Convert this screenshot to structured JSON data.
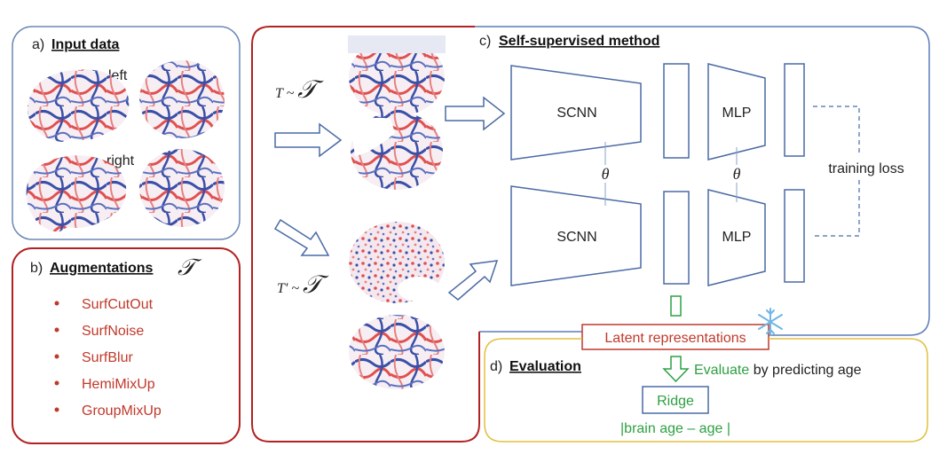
{
  "panel_a": {
    "letter": "a)",
    "title": "Input data",
    "left_label": "left",
    "right_label": "right"
  },
  "panel_b": {
    "letter": "b)",
    "title": "Augmentations",
    "symbol": "𝒯",
    "items": [
      "SurfCutOut",
      "SurfNoise",
      "SurfBlur",
      "HemiMixUp",
      "GroupMixUp"
    ]
  },
  "panel_c": {
    "letter": "c)",
    "title": "Self-supervised method",
    "t1_label": "T ~ ",
    "t2_label": "T' ~ ",
    "t_symbol": "𝒯",
    "scnn_label": "SCNN",
    "mlp_label": "MLP",
    "theta": "θ",
    "loss_label": "training loss"
  },
  "latent": {
    "label": "Latent representations",
    "frozen_icon": "snowflake-icon"
  },
  "panel_d": {
    "letter": "d)",
    "title": "Evaluation",
    "evaluate_word": "Evaluate",
    "evaluate_rest": " by predicting age",
    "ridge_label": "Ridge",
    "metric": "|brain age – age |"
  },
  "colors": {
    "panel_a_border": "#6b87b5",
    "augment_border": "#b22222",
    "augment_text": "#c0392b",
    "method_border": "#5b7db8",
    "eval_border": "#e0c040",
    "green": "#2ea043",
    "blue_shape": "#4a6aa5",
    "snowflake": "#6fb6e6"
  }
}
